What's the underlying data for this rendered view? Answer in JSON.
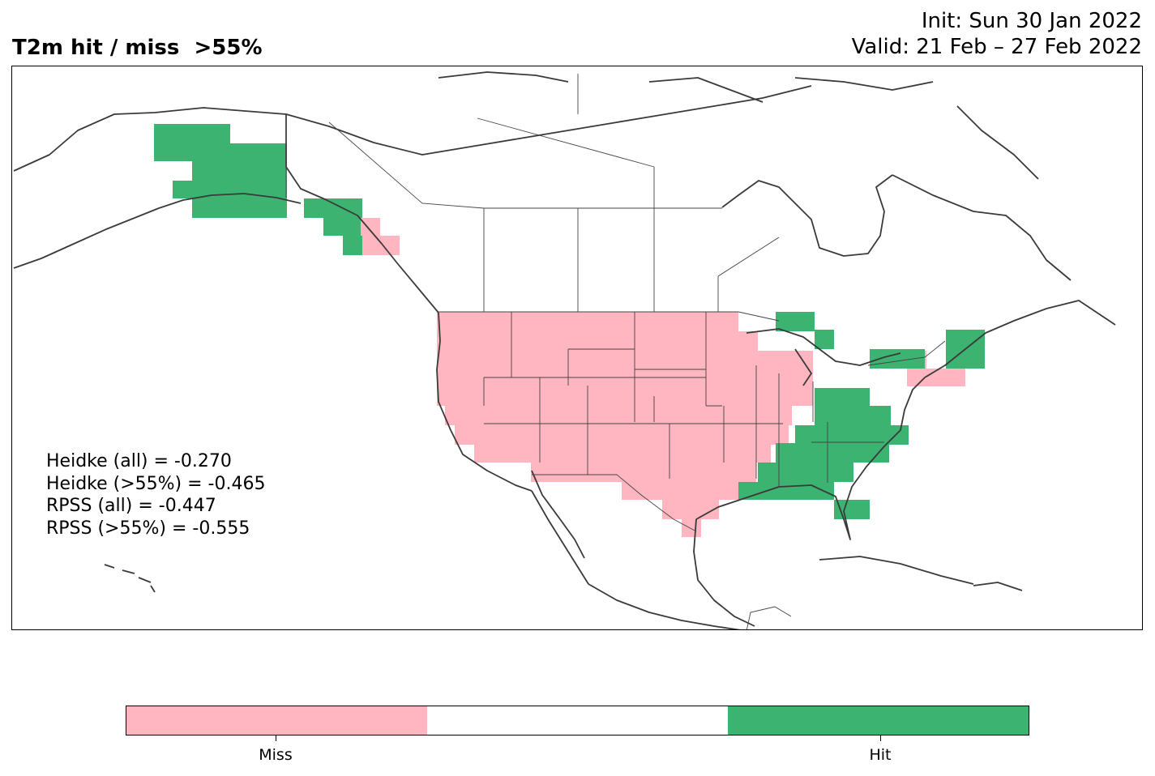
{
  "title": "T2m hit / miss  >55%",
  "init_line": "Init: Sun 30 Jan 2022",
  "valid_line": "Valid: 21 Feb – 27 Feb 2022",
  "colors": {
    "miss": "#ffb6c1",
    "neutral": "#ffffff",
    "hit": "#3cb371",
    "coast": "#3a3a3a",
    "border": "#000000"
  },
  "stats": [
    "Heidke (all) = -0.270",
    "Heidke (>55%) = -0.465",
    "RPSS (all) = -0.447",
    "RPSS (>55%) = -0.555"
  ],
  "legend": {
    "miss_label": "Miss",
    "hit_label": "Hit"
  },
  "map": {
    "projection": "PlateCarree",
    "region": "North America",
    "categories": [
      "Miss",
      "Hit"
    ]
  }
}
